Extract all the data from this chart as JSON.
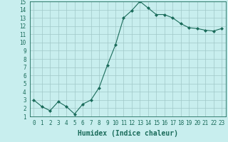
{
  "x": [
    0,
    1,
    2,
    3,
    4,
    5,
    6,
    7,
    8,
    9,
    10,
    11,
    12,
    13,
    14,
    15,
    16,
    17,
    18,
    19,
    20,
    21,
    22,
    23
  ],
  "y": [
    3.0,
    2.2,
    1.7,
    2.8,
    2.2,
    1.3,
    2.5,
    3.0,
    4.5,
    7.2,
    9.7,
    13.0,
    13.9,
    15.0,
    14.2,
    13.4,
    13.4,
    13.0,
    12.3,
    11.8,
    11.7,
    11.5,
    11.4,
    11.7
  ],
  "line_color": "#1a6b5a",
  "marker": "D",
  "marker_size": 2.0,
  "bg_color": "#c8eeee",
  "grid_color": "#a0c8c8",
  "xlabel": "Humidex (Indice chaleur)",
  "xlim": [
    -0.5,
    23.5
  ],
  "ylim": [
    1,
    15
  ],
  "yticks": [
    1,
    2,
    3,
    4,
    5,
    6,
    7,
    8,
    9,
    10,
    11,
    12,
    13,
    14,
    15
  ],
  "xticks": [
    0,
    1,
    2,
    3,
    4,
    5,
    6,
    7,
    8,
    9,
    10,
    11,
    12,
    13,
    14,
    15,
    16,
    17,
    18,
    19,
    20,
    21,
    22,
    23
  ],
  "tick_color": "#1a6b5a",
  "label_fontsize": 5.5,
  "xlabel_fontsize": 7.0,
  "linewidth": 0.8
}
